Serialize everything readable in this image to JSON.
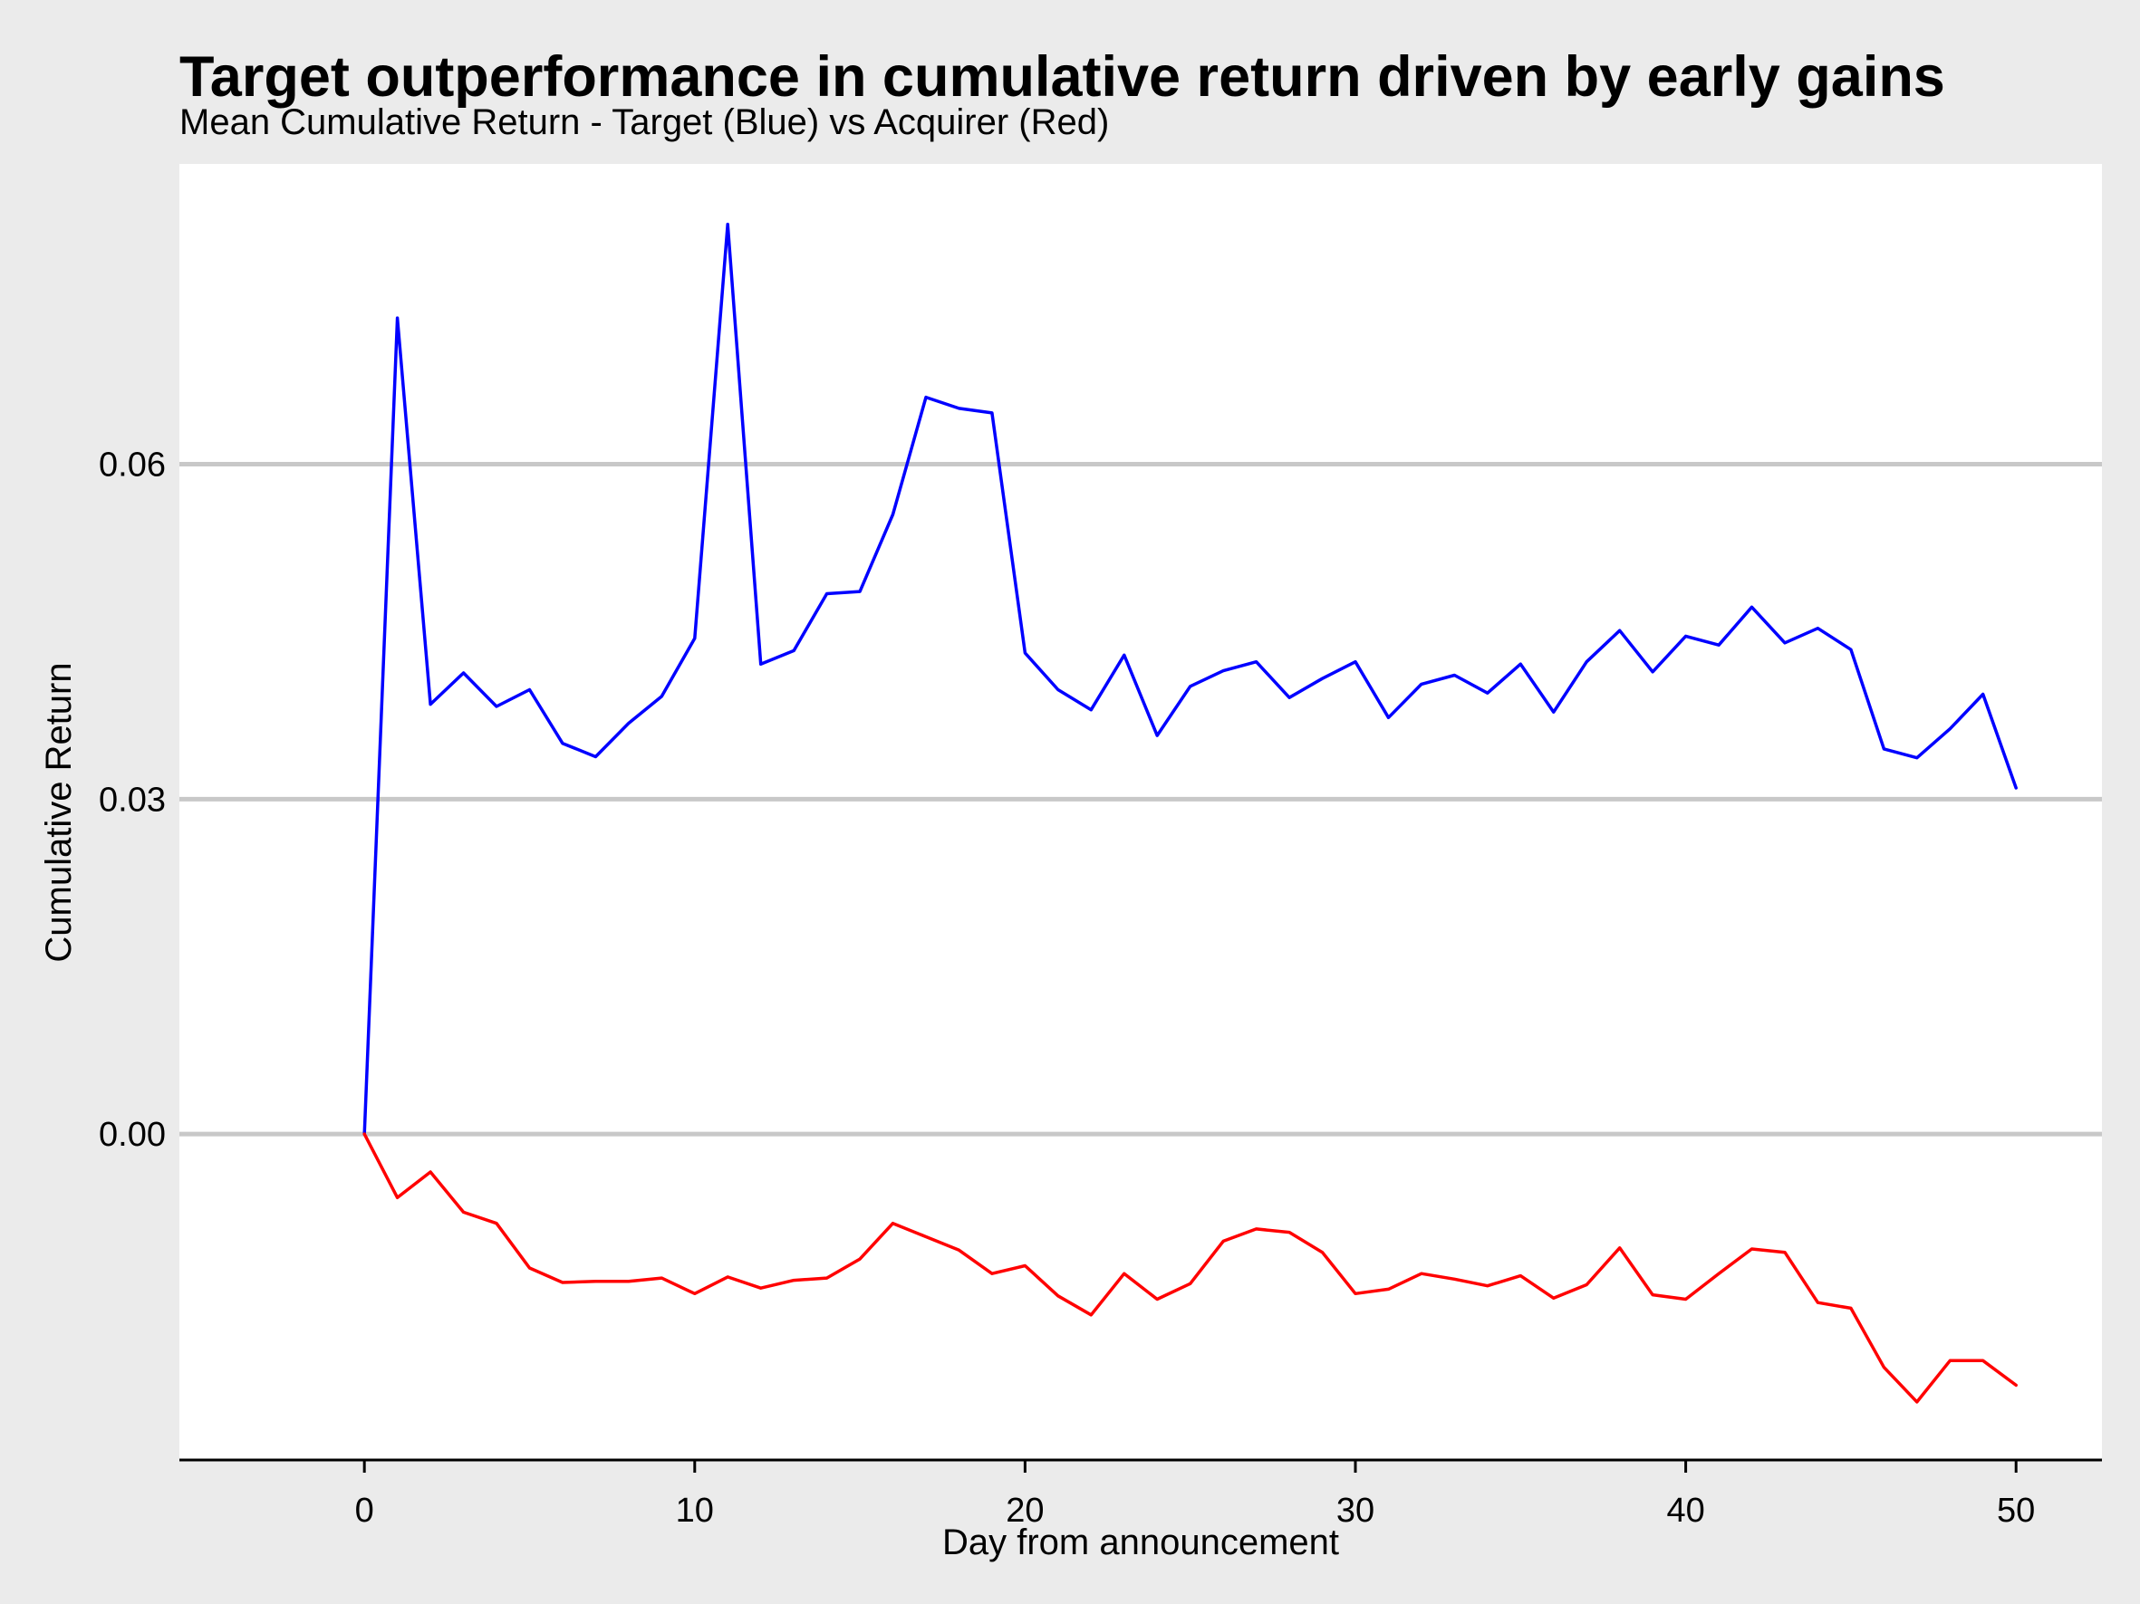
{
  "chart_data": {
    "type": "line",
    "title": "Target outperformance in cumulative return driven by early gains",
    "subtitle": "Mean Cumulative Return - Target (Blue) vs Acquirer (Red)",
    "xlabel": "Day from announcement",
    "ylabel": "Cumulative Return",
    "xlim": [
      -5.6,
      52.6
    ],
    "ylim": [
      -0.0292,
      0.0869
    ],
    "x_ticks": [
      0,
      10,
      20,
      30,
      40,
      50
    ],
    "x_tick_labels": [
      "0",
      "10",
      "20",
      "30",
      "40",
      "50"
    ],
    "y_ticks": [
      0.0,
      0.03,
      0.06
    ],
    "y_tick_labels": [
      "0.00",
      "0.03",
      "0.06"
    ],
    "grid": "horizontal major",
    "x": [
      0,
      1,
      2,
      3,
      4,
      5,
      6,
      7,
      8,
      9,
      10,
      11,
      12,
      13,
      14,
      15,
      16,
      17,
      18,
      19,
      20,
      21,
      22,
      23,
      24,
      25,
      26,
      27,
      28,
      29,
      30,
      31,
      32,
      33,
      34,
      35,
      36,
      37,
      38,
      39,
      40,
      41,
      42,
      43,
      44,
      45,
      46,
      47,
      48,
      49,
      50
    ],
    "series": [
      {
        "color": "#0000ff",
        "values": [
          0.0,
          0.0731,
          0.0385,
          0.0413,
          0.0383,
          0.0398,
          0.035,
          0.0338,
          0.0368,
          0.0392,
          0.0444,
          0.0815,
          0.0421,
          0.0433,
          0.0484,
          0.0486,
          0.0555,
          0.066,
          0.065,
          0.0646,
          0.0431,
          0.0398,
          0.038,
          0.0429,
          0.0357,
          0.0401,
          0.0415,
          0.0423,
          0.0391,
          0.0408,
          0.0423,
          0.0373,
          0.0403,
          0.0411,
          0.0395,
          0.0421,
          0.0378,
          0.0423,
          0.0451,
          0.0414,
          0.0446,
          0.0438,
          0.0472,
          0.044,
          0.0453,
          0.0434,
          0.0345,
          0.0337,
          0.0363,
          0.0394,
          0.031
        ]
      },
      {
        "color": "#ff0000",
        "values": [
          0.0,
          -0.0057,
          -0.0034,
          -0.007,
          -0.008,
          -0.012,
          -0.0133,
          -0.0132,
          -0.0132,
          -0.0129,
          -0.0143,
          -0.0128,
          -0.0138,
          -0.0131,
          -0.0129,
          -0.0112,
          -0.008,
          -0.0092,
          -0.0104,
          -0.0125,
          -0.0118,
          -0.0145,
          -0.0162,
          -0.0125,
          -0.0148,
          -0.0134,
          -0.0096,
          -0.0085,
          -0.0088,
          -0.0106,
          -0.0143,
          -0.0139,
          -0.0125,
          -0.013,
          -0.0136,
          -0.0127,
          -0.0147,
          -0.0135,
          -0.0102,
          -0.0144,
          -0.0148,
          -0.0125,
          -0.0103,
          -0.0106,
          -0.0151,
          -0.0156,
          -0.0209,
          -0.024,
          -0.0203,
          -0.0203,
          -0.0225
        ]
      }
    ]
  },
  "colors": {
    "background": "#ebebeb",
    "panel": "#ffffff",
    "gridline": "#c8c8c8",
    "axis": "#000000"
  }
}
